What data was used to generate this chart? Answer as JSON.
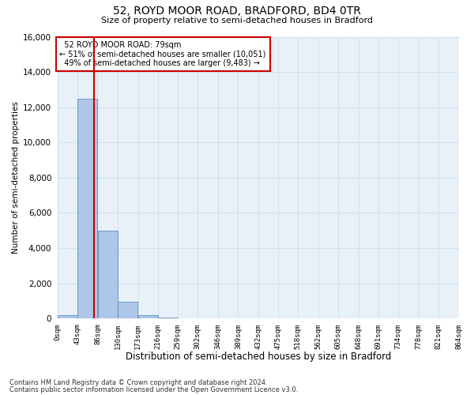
{
  "title": "52, ROYD MOOR ROAD, BRADFORD, BD4 0TR",
  "subtitle": "Size of property relative to semi-detached houses in Bradford",
  "xlabel": "Distribution of semi-detached houses by size in Bradford",
  "ylabel": "Number of semi-detached properties",
  "property_size": 79,
  "property_label": "52 ROYD MOOR ROAD: 79sqm",
  "pct_smaller": 51,
  "count_smaller": 10051,
  "pct_larger": 49,
  "count_larger": 9483,
  "bin_edges": [
    0,
    43,
    86,
    130,
    173,
    216,
    259,
    302,
    346,
    389,
    432,
    475,
    518,
    562,
    605,
    648,
    691,
    734,
    778,
    821,
    864
  ],
  "bar_heights": [
    200,
    12500,
    5000,
    950,
    200,
    50,
    0,
    0,
    0,
    0,
    0,
    0,
    0,
    0,
    0,
    0,
    0,
    0,
    0,
    0
  ],
  "bar_color": "#aec6e8",
  "bar_edge_color": "#5a8fbd",
  "red_line_x": 79,
  "ylim": [
    0,
    16000
  ],
  "yticks": [
    0,
    2000,
    4000,
    6000,
    8000,
    10000,
    12000,
    14000,
    16000
  ],
  "footnote1": "Contains HM Land Registry data © Crown copyright and database right 2024.",
  "footnote2": "Contains public sector information licensed under the Open Government Licence v3.0.",
  "bg_color": "#ffffff",
  "plot_bg_color": "#e8f0f8",
  "grid_color": "#c8d8e8",
  "annotation_box_color": "#cc0000"
}
